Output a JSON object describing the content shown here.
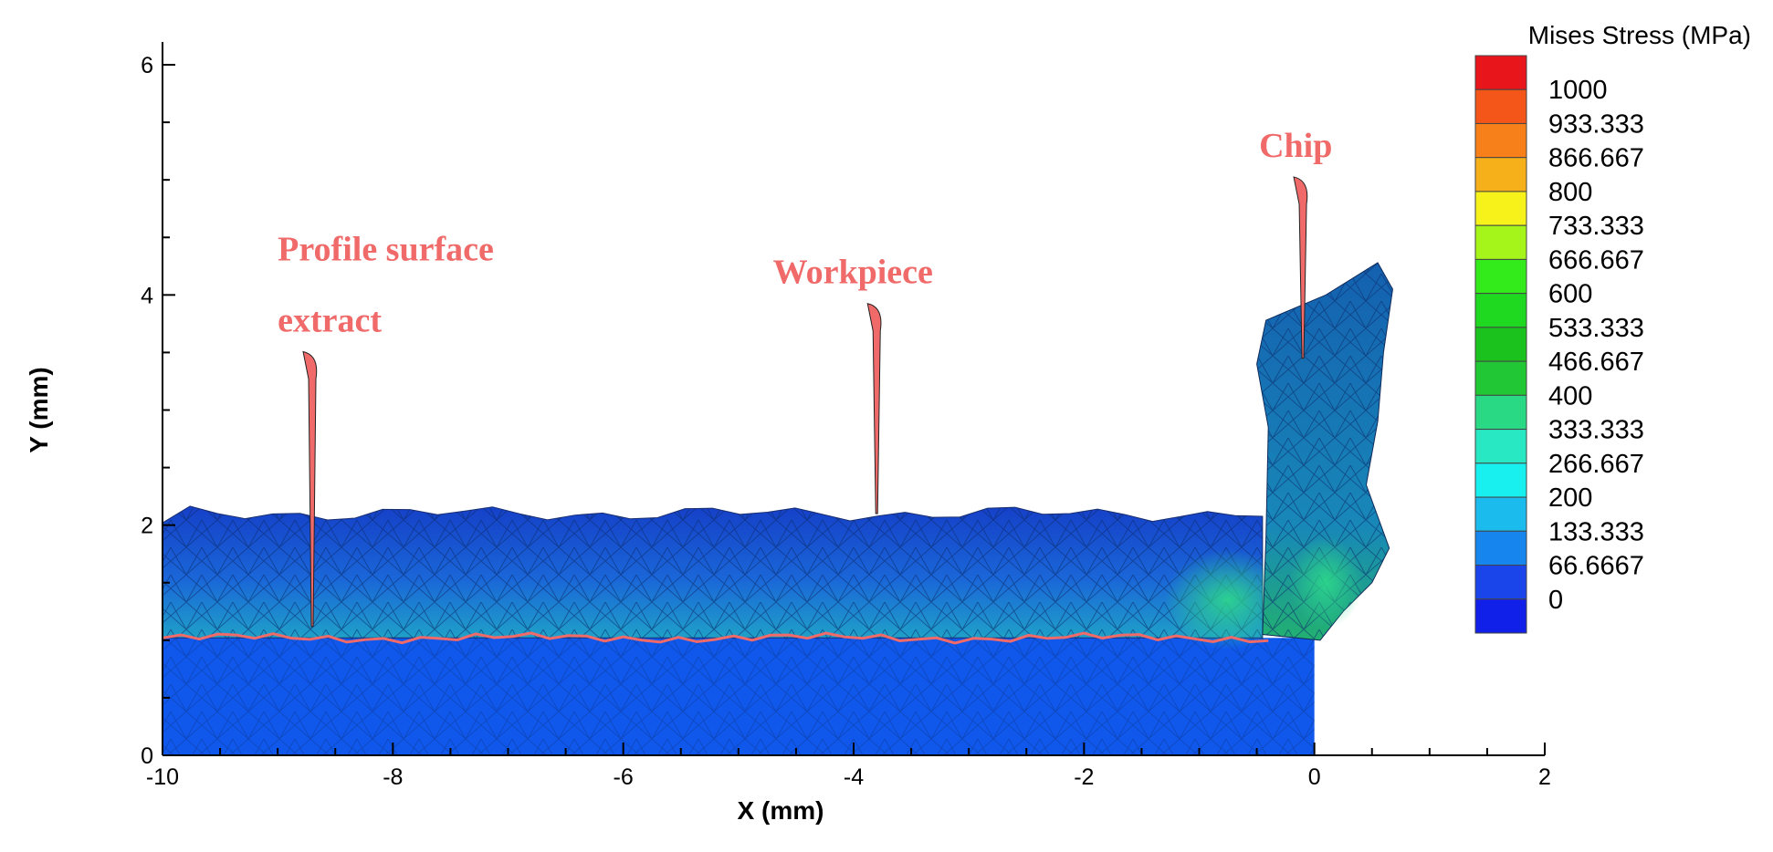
{
  "chart_data": {
    "type": "heatmap",
    "xlabel": "X (mm)",
    "ylabel": "Y (mm)",
    "xlim": [
      -10,
      2
    ],
    "ylim": [
      0,
      6
    ],
    "xticks": [
      -10,
      -8,
      -6,
      -4,
      -2,
      0,
      2
    ],
    "yticks": [
      0,
      2,
      4,
      6
    ],
    "grid": false,
    "legend": {
      "title": "Mises Stress (MPa)",
      "placement": "right",
      "levels": [
        "1000",
        "933.333",
        "866.667",
        "800",
        "733.333",
        "666.667",
        "600",
        "533.333",
        "466.667",
        "400",
        "333.333",
        "266.667",
        "200",
        "133.333",
        "66.6667",
        "0"
      ],
      "colors": [
        "#e8161b",
        "#f4561a",
        "#f8801a",
        "#f6b01a",
        "#f6f21a",
        "#a6f51a",
        "#33ea1b",
        "#1ed91f",
        "#1bc21e",
        "#21c735",
        "#2ad983",
        "#28e8c3",
        "#18f0ef",
        "#1cbbed",
        "#1686ee",
        "#1a45ea",
        "#1020e8"
      ]
    },
    "regions": {
      "base_color": "#1058ec",
      "mesh_color": "#25499f",
      "profile_color": "#f06a6a",
      "workpiece_top_y": 2.1,
      "profile_y": 1.02,
      "base_bottom_y": 0
    },
    "annotations": [
      {
        "lines": [
          "Profile surface",
          "extract"
        ],
        "text_x": -9.0,
        "text_y": 4.3,
        "tip_x": -8.7,
        "tip_y": 1.12
      },
      {
        "lines": [
          "Workpiece"
        ],
        "text_x": -4.7,
        "text_y": 4.1,
        "tip_x": -3.8,
        "tip_y": 2.1
      },
      {
        "lines": [
          "Chip"
        ],
        "text_x": -0.48,
        "text_y": 5.2,
        "tip_x": -0.1,
        "tip_y": 3.45
      }
    ]
  }
}
